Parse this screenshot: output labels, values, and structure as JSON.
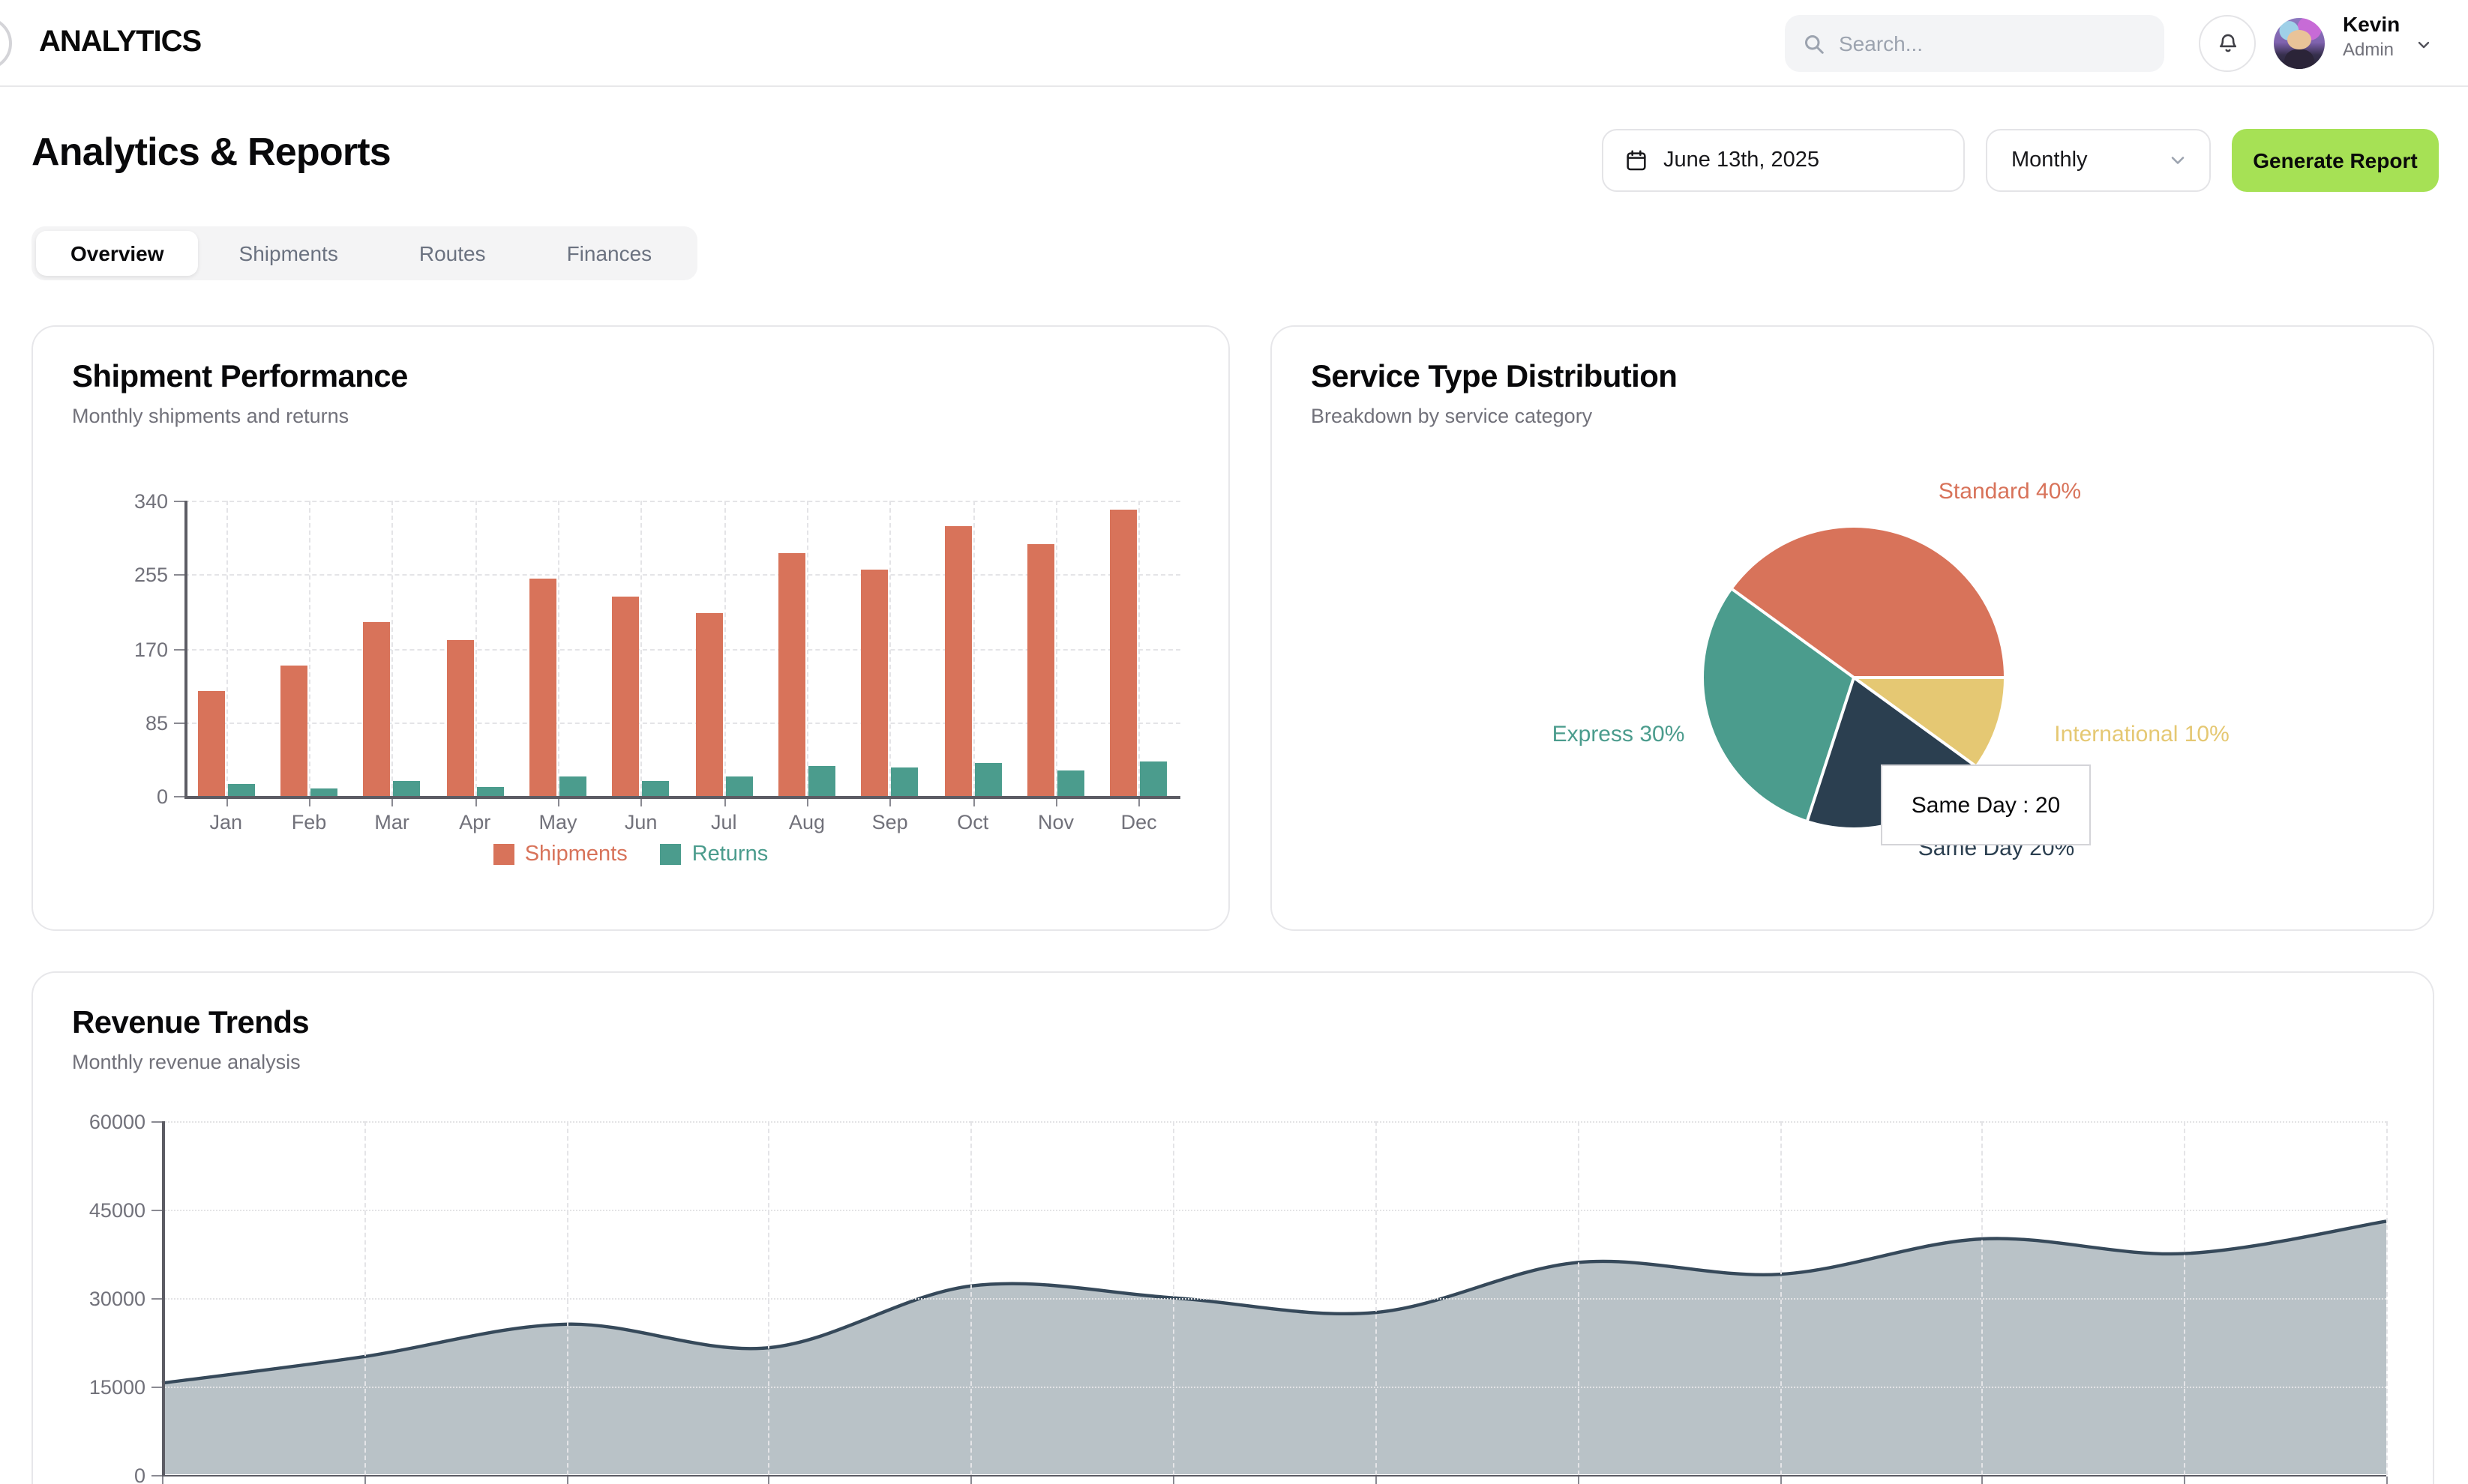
{
  "header": {
    "logo": "ANALYTICS",
    "search_placeholder": "Search...",
    "user_name": "Kevin",
    "user_role": "Admin"
  },
  "page": {
    "title": "Analytics & Reports",
    "date": "June 13th, 2025",
    "period": "Monthly",
    "generate_button": "Generate Report"
  },
  "tabs": [
    {
      "label": "Overview",
      "active": true
    },
    {
      "label": "Shipments",
      "active": false
    },
    {
      "label": "Routes",
      "active": false
    },
    {
      "label": "Finances",
      "active": false
    }
  ],
  "colors": {
    "orange": "#d8735a",
    "teal": "#4b9c8d",
    "navy": "#2b3f50",
    "yellow": "#e5c873",
    "lime_button": "#a6e155",
    "area_fill": "#b9c2c7",
    "area_line": "#36495a",
    "axis": "#5c5c64",
    "tick_text": "#71717a"
  },
  "chart_data": [
    {
      "type": "bar",
      "title": "Shipment Performance",
      "subtitle": "Monthly shipments and returns",
      "categories": [
        "Jan",
        "Feb",
        "Mar",
        "Apr",
        "May",
        "Jun",
        "Jul",
        "Aug",
        "Sep",
        "Oct",
        "Nov",
        "Dec"
      ],
      "series": [
        {
          "name": "Shipments",
          "color": "#d8735a",
          "values": [
            120,
            150,
            200,
            180,
            250,
            230,
            210,
            280,
            260,
            310,
            290,
            330
          ]
        },
        {
          "name": "Returns",
          "color": "#4b9c8d",
          "values": [
            13,
            8,
            18,
            11,
            23,
            17,
            22,
            35,
            32,
            38,
            30,
            40
          ]
        }
      ],
      "ylim": [
        0,
        340
      ],
      "yticks": [
        0,
        85,
        170,
        255,
        340
      ],
      "legend_position": "bottom",
      "grid": "dashed horizontal + vertical at category centers"
    },
    {
      "type": "pie",
      "title": "Service Type Distribution",
      "subtitle": "Breakdown by service category",
      "start_angle_deg": -54,
      "slices": [
        {
          "name": "Standard",
          "value": 40,
          "color": "#d8735a",
          "label": "Standard 40%",
          "label_x": 492,
          "label_y": 110
        },
        {
          "name": "International",
          "value": 10,
          "color": "#e5c873",
          "label": "International 10%",
          "label_x": 580,
          "label_y": 272
        },
        {
          "name": "Same Day",
          "value": 20,
          "color": "#2b3f50",
          "label": "Same Day 20%",
          "label_x": 483,
          "label_y": 348
        },
        {
          "name": "Express",
          "value": 30,
          "color": "#4b9c8d",
          "label": "Express 30%",
          "label_x": 231,
          "label_y": 272
        }
      ],
      "tooltip": {
        "text": "Same Day : 20"
      }
    },
    {
      "type": "area",
      "title": "Revenue Trends",
      "subtitle": "Monthly revenue analysis",
      "values": [
        15500,
        20000,
        25500,
        21500,
        32000,
        30000,
        27500,
        36000,
        34000,
        40000,
        37500,
        43000
      ],
      "ylim": [
        0,
        60000
      ],
      "yticks": [
        0,
        15000,
        30000,
        45000,
        60000
      ],
      "x_axis_labels_visible": false,
      "fill_color": "#b9c2c7",
      "line_color": "#36495a",
      "grid": "dotted horizontal, dashed vertical"
    }
  ]
}
